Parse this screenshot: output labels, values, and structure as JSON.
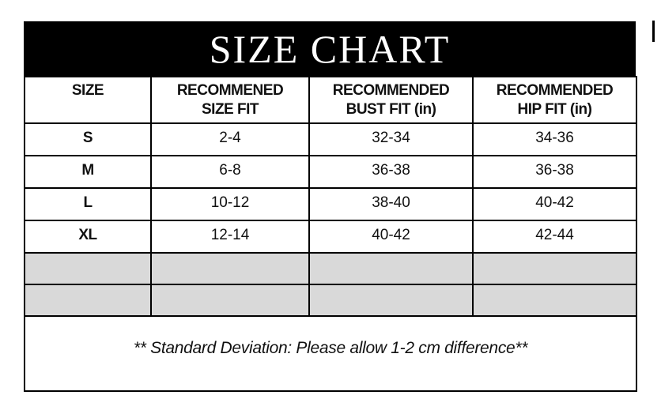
{
  "banner": {
    "title": "SIZE CHART",
    "bg_color": "#000000",
    "text_color": "#ffffff"
  },
  "decor": {
    "edge_mark_color": "#000000"
  },
  "table": {
    "headers": [
      {
        "line1": "SIZE",
        "line2": ""
      },
      {
        "line1": "RECOMMENED",
        "line2": "SIZE FIT"
      },
      {
        "line1": "RECOMMENDED",
        "line2": "BUST FIT (in)"
      },
      {
        "line1": "RECOMMENDED",
        "line2": "HIP FIT (in)"
      }
    ],
    "rows": [
      {
        "size": "S",
        "size_fit": "2-4",
        "bust_fit": "32-34",
        "hip_fit": "34-36"
      },
      {
        "size": "M",
        "size_fit": "6-8",
        "bust_fit": "36-38",
        "hip_fit": "36-38"
      },
      {
        "size": "L",
        "size_fit": "10-12",
        "bust_fit": "38-40",
        "hip_fit": "40-42"
      },
      {
        "size": "XL",
        "size_fit": "12-14",
        "bust_fit": "40-42",
        "hip_fit": "42-44"
      }
    ],
    "empty_row_count": 2,
    "empty_row_bg": "#d9d9d9",
    "note": "** Standard Deviation: Please allow 1-2 cm difference**"
  }
}
